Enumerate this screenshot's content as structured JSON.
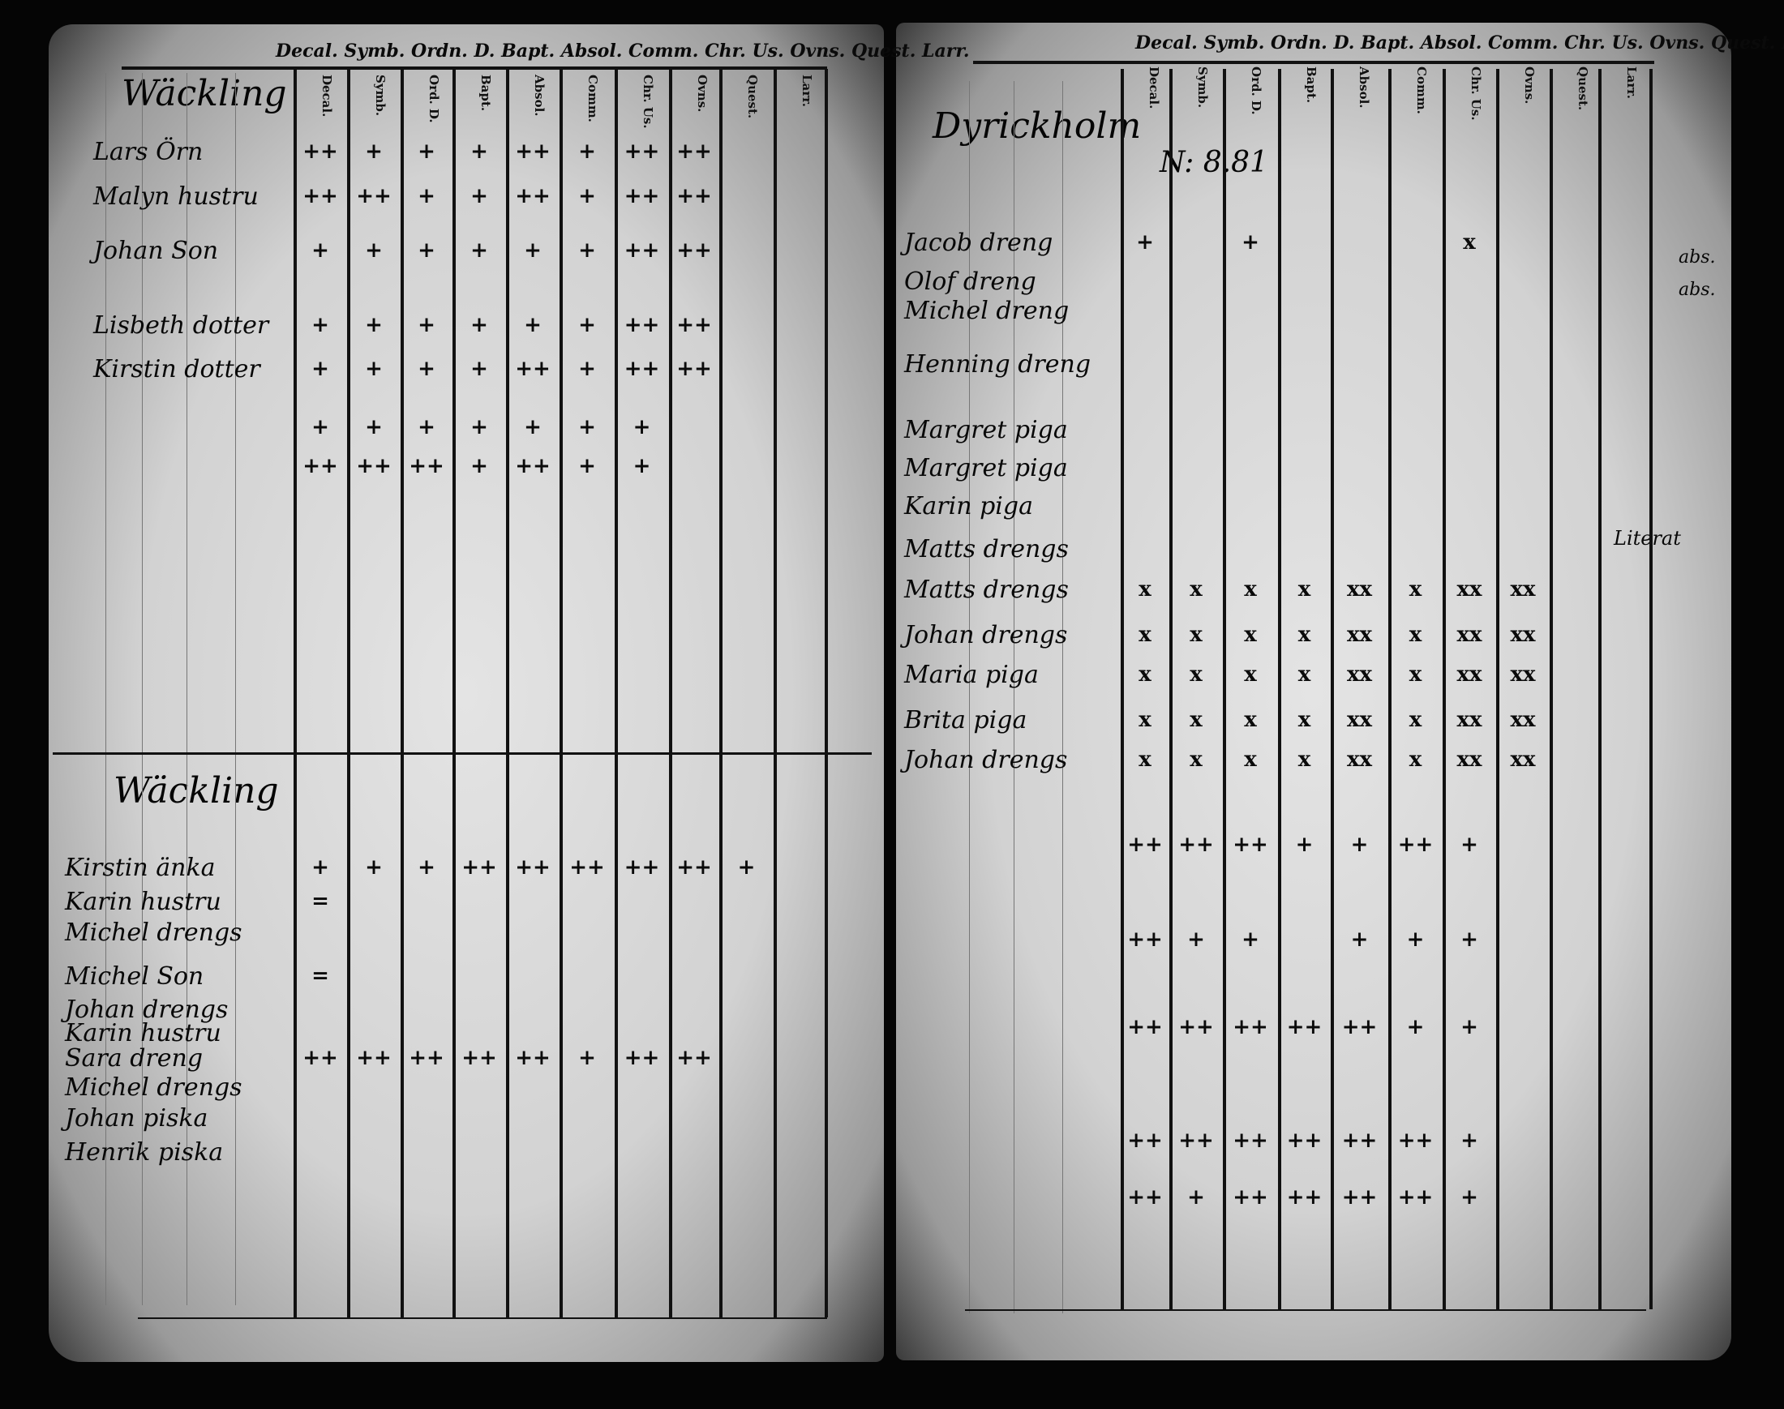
{
  "left_page": {
    "column_header_line": "Decal. Symb. Ordn. D. Bapt. Absol. Comm. Chr. Us. Ovns. Quest. Larr.",
    "columns": [
      "Decal.",
      "Symb.",
      "Ord. D.",
      "Bapt.",
      "Absol.",
      "Comm.",
      "Chr. Us.",
      "Ovns.",
      "Quest.",
      "Larr."
    ],
    "sections": [
      {
        "heading": "Wäckling",
        "rows": [
          {
            "name": "Lars Örn",
            "marks": [
              "++",
              "+",
              "+",
              "+",
              "++",
              "+",
              "++",
              "++",
              "",
              ""
            ]
          },
          {
            "name": "Malyn hustru",
            "marks": [
              "++",
              "++",
              "+",
              "+",
              "++",
              "+",
              "++",
              "++",
              "",
              ""
            ]
          },
          {
            "name": "Johan Son",
            "marks": [
              "+",
              "+",
              "+",
              "+",
              "+",
              "+",
              "++",
              "++",
              "",
              ""
            ]
          },
          {
            "name": "Lisbeth dotter",
            "marks": [
              "+",
              "+",
              "+",
              "+",
              "+",
              "+",
              "++",
              "++",
              "",
              ""
            ]
          },
          {
            "name": "Kirstin dotter",
            "marks": [
              "+",
              "+",
              "+",
              "+",
              "++",
              "+",
              "++",
              "++",
              "",
              ""
            ]
          },
          {
            "name": "",
            "marks": [
              "+",
              "+",
              "+",
              "+",
              "+",
              "+",
              "+",
              "",
              "",
              ""
            ]
          },
          {
            "name": "",
            "marks": [
              "++",
              "++",
              "++",
              "+",
              "++",
              "+",
              "+",
              "",
              "",
              ""
            ]
          }
        ]
      },
      {
        "heading": "Wäckling",
        "rows": [
          {
            "name": "Kirstin änka",
            "marks": [
              "+",
              "+",
              "+",
              "++",
              "++",
              "++",
              "++",
              "++",
              "+",
              ""
            ]
          },
          {
            "name": "Karin hustru",
            "marks": [
              "=",
              "",
              "",
              "",
              "",
              "",
              "",
              "",
              "",
              ""
            ]
          },
          {
            "name": "Michel drengs",
            "marks": [
              "",
              "",
              "",
              "",
              "",
              "",
              "",
              "",
              "",
              ""
            ]
          },
          {
            "name": "Michel Son",
            "marks": [
              "=",
              "",
              "",
              "",
              "",
              "",
              "",
              "",
              "",
              ""
            ]
          },
          {
            "name": "Johan drengs",
            "marks": [
              "",
              "",
              "",
              "",
              "",
              "",
              "",
              "",
              "",
              ""
            ]
          },
          {
            "name": "Karin hustru",
            "marks": [
              "",
              "",
              "",
              "",
              "",
              "",
              "",
              "",
              "",
              ""
            ]
          },
          {
            "name": "Sara dreng",
            "marks": [
              "++",
              "++",
              "++",
              "++",
              "++",
              "+",
              "++",
              "++",
              "",
              ""
            ]
          },
          {
            "name": "Michel drengs",
            "marks": [
              "",
              "",
              "",
              "",
              "",
              "",
              "",
              "",
              "",
              ""
            ]
          },
          {
            "name": "Johan piska",
            "marks": [
              "",
              "",
              "",
              "",
              "",
              "",
              "",
              "",
              "",
              ""
            ]
          },
          {
            "name": "Henrik piska",
            "marks": [
              "",
              "",
              "",
              "",
              "",
              "",
              "",
              "",
              "",
              ""
            ]
          }
        ]
      }
    ]
  },
  "right_page": {
    "column_header_line": "Decal. Symb. Ordn. D. Bapt. Absol. Comm. Chr. Us. Ovns. Quest. Larr.",
    "columns": [
      "Decal.",
      "Symb.",
      "Ord. D.",
      "Bapt.",
      "Absol.",
      "Comm.",
      "Chr. Us.",
      "Ovns.",
      "Quest.",
      "Larr."
    ],
    "heading": "Dyrickholm",
    "number": "N: 8.81",
    "rows": [
      {
        "name": "Jacob dreng",
        "marks": [
          "+",
          "",
          "+",
          "",
          "",
          "",
          "x",
          "",
          "",
          ""
        ]
      },
      {
        "name": "Olof dreng",
        "marks": [
          "",
          "",
          "",
          "",
          "",
          "",
          "",
          "",
          "",
          ""
        ]
      },
      {
        "name": "Michel dreng",
        "marks": [
          "",
          "",
          "",
          "",
          "",
          "",
          "",
          "",
          "",
          ""
        ]
      },
      {
        "name": "Henning dreng",
        "marks": [
          "",
          "",
          "",
          "",
          "",
          "",
          "",
          "",
          "",
          ""
        ]
      },
      {
        "name": "Margret piga",
        "marks": [
          "",
          "",
          "",
          "",
          "",
          "",
          "",
          "",
          "",
          ""
        ]
      },
      {
        "name": "Margret piga",
        "marks": [
          "",
          "",
          "",
          "",
          "",
          "",
          "",
          "",
          "",
          ""
        ]
      },
      {
        "name": "Karin piga",
        "marks": [
          "",
          "",
          "",
          "",
          "",
          "",
          "",
          "",
          "",
          ""
        ]
      },
      {
        "name": "Matts drengs",
        "marks": [
          "",
          "",
          "",
          "",
          "",
          "",
          "",
          "",
          "",
          ""
        ]
      },
      {
        "name": "Matts drengs",
        "marks": [
          "x",
          "x",
          "x",
          "x",
          "xx",
          "x",
          "xx",
          "xx",
          "",
          ""
        ]
      },
      {
        "name": "Johan drengs",
        "marks": [
          "x",
          "x",
          "x",
          "x",
          "xx",
          "x",
          "xx",
          "xx",
          "",
          ""
        ]
      },
      {
        "name": "Maria piga",
        "marks": [
          "x",
          "x",
          "x",
          "x",
          "xx",
          "x",
          "xx",
          "xx",
          "",
          ""
        ]
      },
      {
        "name": "Brita piga",
        "marks": [
          "x",
          "x",
          "x",
          "x",
          "xx",
          "x",
          "xx",
          "xx",
          "",
          ""
        ]
      },
      {
        "name": "Johan drengs",
        "marks": [
          "x",
          "x",
          "x",
          "x",
          "xx",
          "x",
          "xx",
          "xx",
          "",
          ""
        ]
      },
      {
        "name": "",
        "marks": [
          "++",
          "++",
          "++",
          "+",
          "+",
          "++",
          "+",
          "",
          "",
          ""
        ]
      },
      {
        "name": "",
        "marks": [
          "++",
          "+",
          "+",
          "",
          "+",
          "+",
          "+",
          "",
          "",
          ""
        ]
      },
      {
        "name": "",
        "marks": [
          "++",
          "++",
          "++",
          "++",
          "++",
          "+",
          "+",
          "",
          "",
          ""
        ]
      },
      {
        "name": "",
        "marks": [
          "++",
          "++",
          "++",
          "++",
          "++",
          "++",
          "+",
          "",
          "",
          ""
        ]
      },
      {
        "name": "",
        "marks": [
          "++",
          "+",
          "++",
          "++",
          "++",
          "++",
          "+",
          "",
          "",
          ""
        ]
      }
    ],
    "margin_notes": [
      "abs.",
      "abs.",
      "Literat"
    ]
  }
}
